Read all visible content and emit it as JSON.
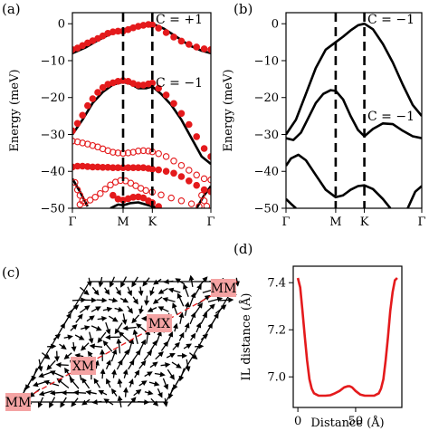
{
  "chart_data": [
    {
      "type": "line",
      "panel_label": "(a)",
      "ylabel": "Energy (meV)",
      "xlabel": "",
      "ylim": [
        -50,
        3
      ],
      "yticks": [
        0,
        -10,
        -20,
        -30,
        -40,
        -50
      ],
      "path_ticks": [
        "Γ",
        "M",
        "K",
        "Γ"
      ],
      "path_positions": [
        0,
        1,
        1.577,
        2.732
      ],
      "dashed_at": [
        "M",
        "K"
      ],
      "annotations": [
        "C = +1",
        "C = −1"
      ],
      "series": [
        {
          "style": "solid-black",
          "x": [
            0,
            0.25,
            0.5,
            0.75,
            1.0,
            1.15,
            1.3,
            1.45,
            1.577,
            1.8,
            2.05,
            2.3,
            2.55,
            2.732
          ],
          "y": [
            -8,
            -6.5,
            -4.5,
            -2.8,
            -1.6,
            -1.0,
            -0.5,
            -0.1,
            0,
            -1.3,
            -3.5,
            -5.8,
            -7.3,
            -8
          ]
        },
        {
          "style": "solid-black",
          "x": [
            0,
            0.2,
            0.4,
            0.6,
            0.8,
            1.0,
            1.15,
            1.3,
            1.45,
            1.577,
            1.75,
            1.95,
            2.15,
            2.35,
            2.55,
            2.732
          ],
          "y": [
            -30,
            -26,
            -21.5,
            -18.5,
            -16.5,
            -15.8,
            -16.3,
            -17.5,
            -17.5,
            -17.0,
            -19,
            -22,
            -26,
            -31,
            -36,
            -38
          ]
        },
        {
          "style": "solid-black",
          "x": [
            0,
            0.15,
            0.3
          ],
          "y": [
            -42,
            -45.5,
            -49.5
          ]
        },
        {
          "style": "solid-black",
          "x": [
            0.75,
            0.9,
            1.0,
            1.15,
            1.3,
            1.45,
            1.577,
            1.75
          ],
          "y": [
            -50,
            -49,
            -49.2,
            -48.6,
            -48.4,
            -49,
            -49.5,
            -50
          ]
        },
        {
          "style": "solid-black",
          "x": [
            2.45,
            2.6,
            2.732
          ],
          "y": [
            -50,
            -46.5,
            -44
          ]
        },
        {
          "style": "filled-red-markers",
          "x": [
            0,
            0.1,
            0.2,
            0.3,
            0.4,
            0.5,
            0.6,
            0.7,
            0.8,
            0.9,
            1.0,
            1.1,
            1.2,
            1.3,
            1.4,
            1.5,
            1.577,
            1.7,
            1.85,
            2.0,
            2.15,
            2.3,
            2.45,
            2.6,
            2.732
          ],
          "y": [
            -7,
            -6.6,
            -5.9,
            -5.2,
            -4.6,
            -4.0,
            -3.3,
            -2.6,
            -2.2,
            -2.0,
            -2.0,
            -1.6,
            -1.1,
            -0.7,
            -0.4,
            -0.2,
            -0.3,
            -1.2,
            -2.4,
            -3.6,
            -4.7,
            -5.6,
            -6.3,
            -6.8,
            -7
          ]
        },
        {
          "style": "filled-red-markers",
          "x": [
            0,
            0.1,
            0.2,
            0.3,
            0.4,
            0.5,
            0.6,
            0.7,
            0.8,
            0.9,
            1.0,
            1.1,
            1.2,
            1.3,
            1.4,
            1.5,
            1.577,
            1.7,
            1.85,
            2.0,
            2.15,
            2.3,
            2.45,
            2.6,
            2.732
          ],
          "y": [
            -29,
            -27,
            -24.8,
            -22.2,
            -20.3,
            -18.6,
            -17.3,
            -16.4,
            -16.0,
            -15.6,
            -15.4,
            -15.6,
            -16.2,
            -16.6,
            -16.6,
            -16.3,
            -16.1,
            -17.5,
            -19.3,
            -21.6,
            -24.3,
            -27.3,
            -30.6,
            -33.8,
            -36
          ]
        },
        {
          "style": "filled-red-markers",
          "x": [
            0,
            0.1,
            0.2,
            0.3,
            0.4,
            0.5,
            0.6,
            0.7,
            0.8,
            0.9,
            1.0,
            1.1,
            1.2,
            1.3,
            1.4,
            1.5,
            1.577,
            1.7,
            1.85,
            2.0,
            2.15,
            2.3,
            2.45,
            2.6,
            2.732
          ],
          "y": [
            -38.8,
            -38.6,
            -38.6,
            -38.7,
            -38.8,
            -38.8,
            -38.9,
            -38.9,
            -39.0,
            -39.0,
            -39.0,
            -39.0,
            -39.0,
            -39.0,
            -39.0,
            -39.2,
            -39.4,
            -39.6,
            -40.0,
            -40.5,
            -41.4,
            -42.6,
            -43.8,
            -45,
            -45.5
          ]
        },
        {
          "style": "filled-red-markers",
          "x": [
            0.8,
            0.9,
            1.0,
            1.1,
            1.2,
            1.3,
            1.4,
            1.5,
            1.577,
            1.7
          ],
          "y": [
            -46.5,
            -47.5,
            -47.8,
            -47.4,
            -47.0,
            -46.9,
            -47.2,
            -48.0,
            -48.5,
            -49.5
          ]
        },
        {
          "style": "open-red-markers",
          "x": [
            0,
            0.1,
            0.2,
            0.3,
            0.4,
            0.5,
            0.6,
            0.7,
            0.8,
            0.9,
            1.0,
            1.1,
            1.2,
            1.3,
            1.4,
            1.5,
            1.577,
            1.7,
            1.85,
            2.0,
            2.15,
            2.3,
            2.45,
            2.6,
            2.732
          ],
          "y": [
            -31.8,
            -32.0,
            -32.3,
            -32.6,
            -33.0,
            -33.4,
            -33.9,
            -34.4,
            -34.8,
            -35.0,
            -35.1,
            -35.0,
            -34.8,
            -34.5,
            -34.4,
            -34.5,
            -34.7,
            -35.2,
            -36,
            -37.2,
            -38.4,
            -39.7,
            -41,
            -42,
            -42.3
          ]
        },
        {
          "style": "open-red-markers",
          "x": [
            0.15,
            0.25,
            0.35,
            0.45,
            0.55,
            0.65,
            0.75,
            0.85,
            0.95,
            1.05,
            1.15,
            1.25,
            1.35,
            1.45,
            1.577,
            1.75,
            1.95,
            2.15,
            2.35,
            2.5
          ],
          "y": [
            -49,
            -48.4,
            -47.8,
            -47.0,
            -46.0,
            -44.8,
            -43.7,
            -42.9,
            -42.5,
            -42.6,
            -43.2,
            -43.9,
            -44.6,
            -45.2,
            -45.6,
            -46.4,
            -47.2,
            -48,
            -48.8,
            -49.5
          ]
        },
        {
          "style": "open-red-markers",
          "x": [
            0.05,
            0.1,
            0.15,
            0.2,
            2.55,
            2.6,
            2.65
          ],
          "y": [
            -43,
            -45,
            -46.5,
            -48,
            -46.5,
            -48,
            -49.4
          ]
        }
      ]
    },
    {
      "type": "line",
      "panel_label": "(b)",
      "ylabel": "Energy (meV)",
      "xlabel": "",
      "ylim": [
        -50,
        3
      ],
      "yticks": [
        0,
        -10,
        -20,
        -30,
        -40,
        -50
      ],
      "path_ticks": [
        "Γ",
        "M",
        "K",
        "Γ"
      ],
      "path_positions": [
        0,
        1,
        1.577,
        2.732
      ],
      "dashed_at": [
        "M",
        "K"
      ],
      "annotations": [
        "C = −1",
        "C = −1"
      ],
      "series": [
        {
          "style": "solid-black",
          "x": [
            0,
            0.2,
            0.4,
            0.6,
            0.8,
            1.0,
            1.15,
            1.3,
            1.45,
            1.577,
            1.75,
            1.95,
            2.15,
            2.35,
            2.55,
            2.732
          ],
          "y": [
            -30,
            -26,
            -19,
            -12,
            -7,
            -5,
            -3.5,
            -1.8,
            -0.4,
            0,
            -1.5,
            -5.5,
            -10.5,
            -16.5,
            -22,
            -25
          ]
        },
        {
          "style": "solid-black",
          "x": [
            0,
            0.15,
            0.3,
            0.45,
            0.6,
            0.75,
            0.9,
            1.0,
            1.15,
            1.3,
            1.45,
            1.577,
            1.75,
            1.95,
            2.15,
            2.35,
            2.55,
            2.732
          ],
          "y": [
            -31,
            -31.5,
            -29.5,
            -25.5,
            -21.5,
            -19,
            -18,
            -18.2,
            -20.5,
            -25,
            -28.8,
            -30.5,
            -28.5,
            -27,
            -27.2,
            -29,
            -30.5,
            -31
          ]
        },
        {
          "style": "solid-black",
          "x": [
            0,
            0.1,
            0.25,
            0.4,
            0.6,
            0.8,
            1.0,
            1.15,
            1.3,
            1.45,
            1.577,
            1.75,
            1.95,
            2.1
          ],
          "y": [
            -38.5,
            -36.5,
            -35.5,
            -37,
            -41,
            -45,
            -47,
            -46.5,
            -45,
            -44,
            -43.8,
            -44.8,
            -47.5,
            -50
          ]
        },
        {
          "style": "solid-black",
          "x": [
            0,
            0.1,
            0.2
          ],
          "y": [
            -47.5,
            -48.8,
            -50
          ]
        },
        {
          "style": "solid-black",
          "x": [
            2.45,
            2.6,
            2.732
          ],
          "y": [
            -50,
            -45.5,
            -44
          ]
        }
      ]
    },
    {
      "type": "diagram",
      "panel_label": "(c)",
      "sites": [
        "MM",
        "XM",
        "MX",
        "MM"
      ]
    },
    {
      "type": "line",
      "panel_label": "(d)",
      "xlabel": "Distance (Å)",
      "ylabel": "IL distance (Å)",
      "xlim": [
        -4,
        90
      ],
      "ylim": [
        6.87,
        7.47
      ],
      "xticks": [
        0,
        50
      ],
      "yticks": [
        7.0,
        7.2,
        7.4
      ],
      "ytick_labels": [
        "7.0",
        "7.2",
        "7.4"
      ],
      "series": [
        {
          "color": "#e41a1c",
          "x": [
            0,
            2,
            4,
            6,
            8,
            10,
            12,
            14,
            16,
            18,
            20,
            24,
            28,
            32,
            36,
            40,
            43,
            45,
            47,
            50,
            54,
            58,
            62,
            66,
            68,
            70,
            72,
            74,
            76,
            78,
            80,
            82,
            84,
            86
          ],
          "y": [
            7.42,
            7.38,
            7.28,
            7.17,
            7.07,
            6.99,
            6.95,
            6.93,
            6.925,
            6.92,
            6.92,
            6.92,
            6.922,
            6.93,
            6.94,
            6.955,
            6.96,
            6.96,
            6.955,
            6.94,
            6.925,
            6.92,
            6.92,
            6.92,
            6.925,
            6.93,
            6.95,
            6.99,
            7.07,
            7.17,
            7.28,
            7.36,
            7.41,
            7.42
          ]
        }
      ]
    }
  ]
}
